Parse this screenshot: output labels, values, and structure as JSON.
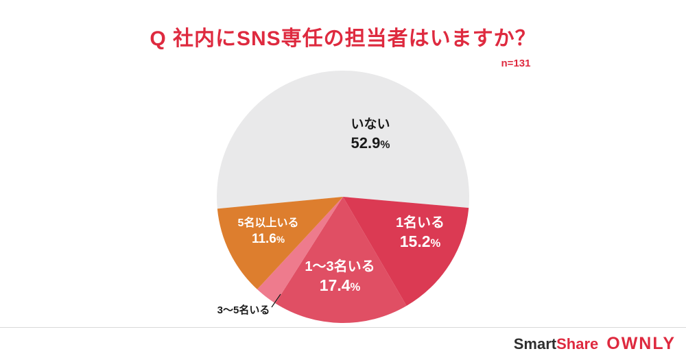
{
  "page": {
    "title": "Q 社内にSNS専任の担当者はいますか？",
    "sample_size": "n=131"
  },
  "chart_data": {
    "type": "pie",
    "title": "Q 社内にSNS専任の担当者はいますか？",
    "n": 131,
    "units": "%",
    "legend": "none",
    "start_angle_deg": 264.6,
    "slices": [
      {
        "label": "いない",
        "value": 52.9,
        "percent_value": "52.9",
        "percent_sign": "%",
        "color": "#e9e9ea",
        "text_color": "#1a1a1a",
        "label_position": "inside"
      },
      {
        "label": "1名いる",
        "value": 15.2,
        "percent_value": "15.2",
        "percent_sign": "%",
        "color": "#db3a53",
        "text_color": "#ffffff",
        "label_position": "inside"
      },
      {
        "label": "1〜3名いる",
        "value": 17.4,
        "percent_value": "17.4",
        "percent_sign": "%",
        "color": "#e04f64",
        "text_color": "#ffffff",
        "label_position": "inside"
      },
      {
        "label": "3〜5名いる",
        "value": 2.9,
        "percent_value": "",
        "percent_sign": "",
        "color": "#ee7b8d",
        "text_color": "#1a1a1a",
        "label_position": "outside"
      },
      {
        "label": "5名以上いる",
        "value": 11.6,
        "percent_value": "11.6",
        "percent_sign": "%",
        "color": "#dd7e2e",
        "text_color": "#ffffff",
        "label_position": "inside"
      }
    ]
  },
  "footer": {
    "logo_smart": "Smart",
    "logo_share": "Share",
    "logo_ownly": "OWNLY"
  },
  "colors": {
    "title_red": "#de2a3f",
    "brand_red": "#de2a3f",
    "logo_dark": "#2e2e2e",
    "divider": "#d8d8d8",
    "background": "#ffffff"
  }
}
